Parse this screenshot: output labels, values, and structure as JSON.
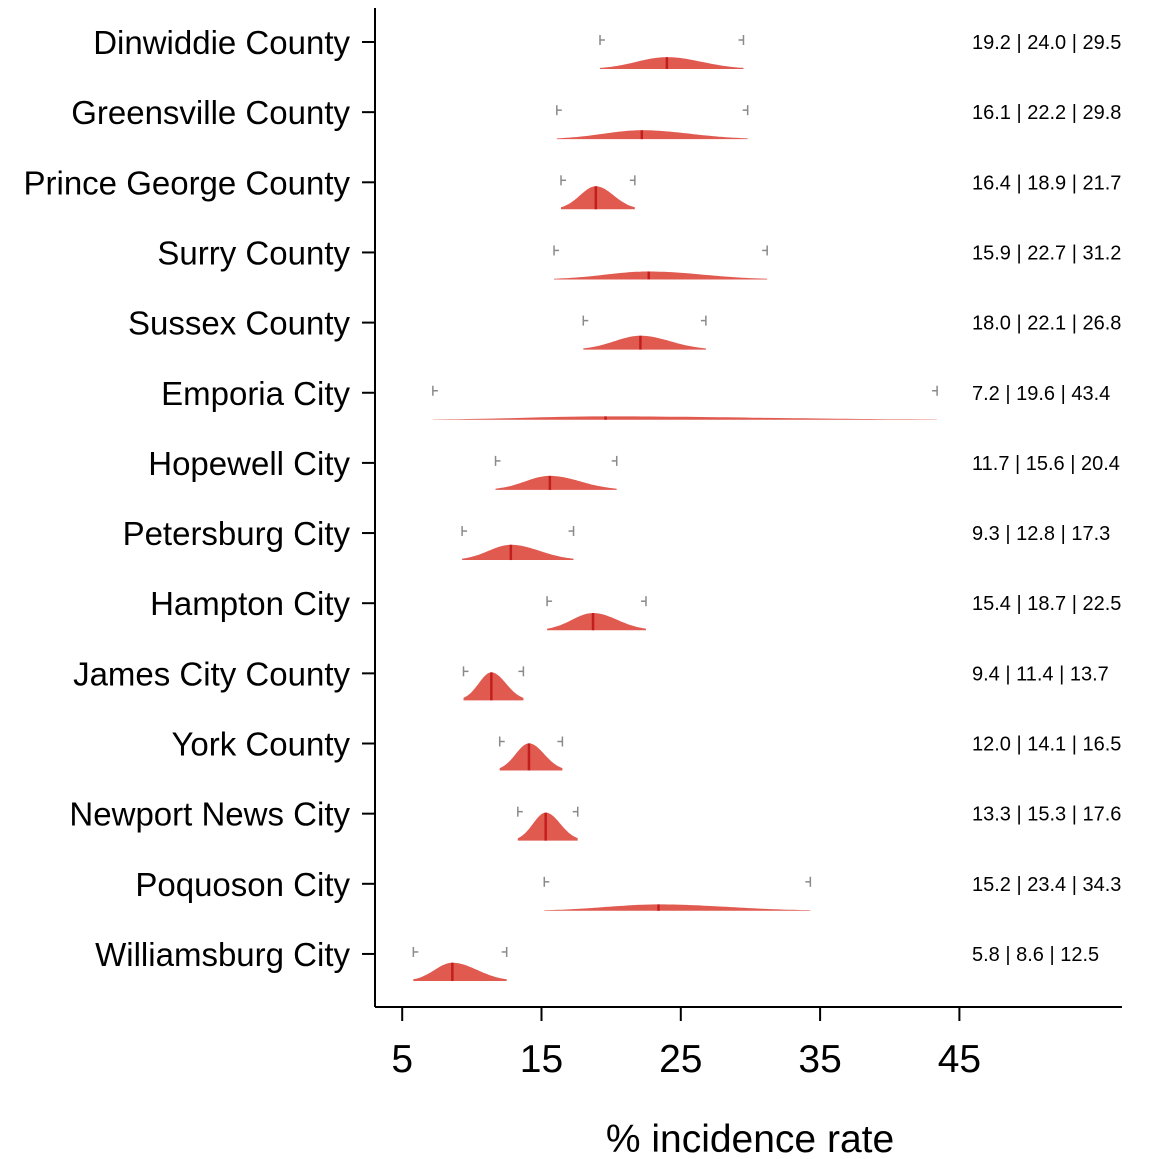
{
  "chart_data": {
    "type": "ridgeline",
    "xlabel": "% incidence rate",
    "xlim": [
      3,
      60.5
    ],
    "xticks": [
      5,
      15,
      25,
      35,
      45
    ],
    "fill_color": "#e05a50",
    "median_color": "#c21e1e",
    "whisker_color": "#8a8a8a",
    "rows": [
      {
        "label": "Dinwiddie County",
        "low": 19.2,
        "median": 24.0,
        "high": 29.5,
        "stats": "19.2 | 24.0 | 29.5"
      },
      {
        "label": "Greensville County",
        "low": 16.1,
        "median": 22.2,
        "high": 29.8,
        "stats": "16.1 | 22.2 | 29.8"
      },
      {
        "label": "Prince George County",
        "low": 16.4,
        "median": 18.9,
        "high": 21.7,
        "stats": "16.4 | 18.9 | 21.7"
      },
      {
        "label": "Surry County",
        "low": 15.9,
        "median": 22.7,
        "high": 31.2,
        "stats": "15.9 | 22.7 | 31.2"
      },
      {
        "label": "Sussex County",
        "low": 18.0,
        "median": 22.1,
        "high": 26.8,
        "stats": "18.0 | 22.1 | 26.8"
      },
      {
        "label": "Emporia City",
        "low": 7.2,
        "median": 19.6,
        "high": 43.4,
        "stats": "7.2 | 19.6 | 43.4"
      },
      {
        "label": "Hopewell City",
        "low": 11.7,
        "median": 15.6,
        "high": 20.4,
        "stats": "11.7 | 15.6 | 20.4"
      },
      {
        "label": "Petersburg City",
        "low": 9.3,
        "median": 12.8,
        "high": 17.3,
        "stats": "9.3 | 12.8 | 17.3"
      },
      {
        "label": "Hampton City",
        "low": 15.4,
        "median": 18.7,
        "high": 22.5,
        "stats": "15.4 | 18.7 | 22.5"
      },
      {
        "label": "James City County",
        "low": 9.4,
        "median": 11.4,
        "high": 13.7,
        "stats": "9.4 | 11.4 | 13.7"
      },
      {
        "label": "York County",
        "low": 12.0,
        "median": 14.1,
        "high": 16.5,
        "stats": "12.0 | 14.1 | 16.5"
      },
      {
        "label": "Newport News City",
        "low": 13.3,
        "median": 15.3,
        "high": 17.6,
        "stats": "13.3 | 15.3 | 17.6"
      },
      {
        "label": "Poquoson City",
        "low": 15.2,
        "median": 23.4,
        "high": 34.3,
        "stats": "15.2 | 23.4 | 34.3"
      },
      {
        "label": "Williamsburg City",
        "low": 5.8,
        "median": 8.6,
        "high": 12.5,
        "stats": "5.8 | 8.6 | 12.5"
      }
    ]
  }
}
